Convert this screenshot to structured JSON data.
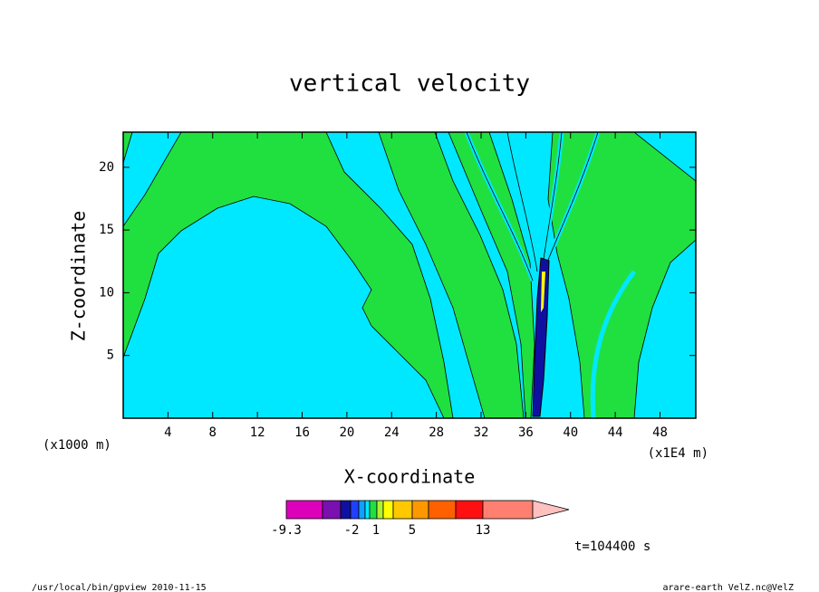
{
  "chart_data": {
    "type": "contour",
    "title": "vertical velocity",
    "xlabel": "X-coordinate",
    "ylabel": "Z-coordinate",
    "x_unit": "(x1E4 m)",
    "y_unit": "(x1000 m)",
    "xlim": [
      0,
      51.2
    ],
    "ylim": [
      0,
      22.8
    ],
    "xticks": [
      4,
      8,
      12,
      16,
      20,
      24,
      28,
      32,
      36,
      40,
      44,
      48
    ],
    "yticks": [
      5,
      10,
      15,
      20
    ],
    "colorbar": {
      "colors": [
        "#dd00bb",
        "#7a10b0",
        "#1010a0",
        "#2040ff",
        "#10a0ff",
        "#00e8ff",
        "#20e040",
        "#b0f030",
        "#ffff00",
        "#ffc800",
        "#ff9800",
        "#ff6000",
        "#ff1010",
        "#ff8070",
        "#ffc0c0"
      ],
      "labels": [
        -9.3,
        -2,
        1,
        5,
        13
      ]
    },
    "time_label": "t=104400 s",
    "footer_left": "/usr/local/bin/gpview  2010-11-15",
    "footer_right": "arare-earth_VelZ.nc@VelZ"
  }
}
